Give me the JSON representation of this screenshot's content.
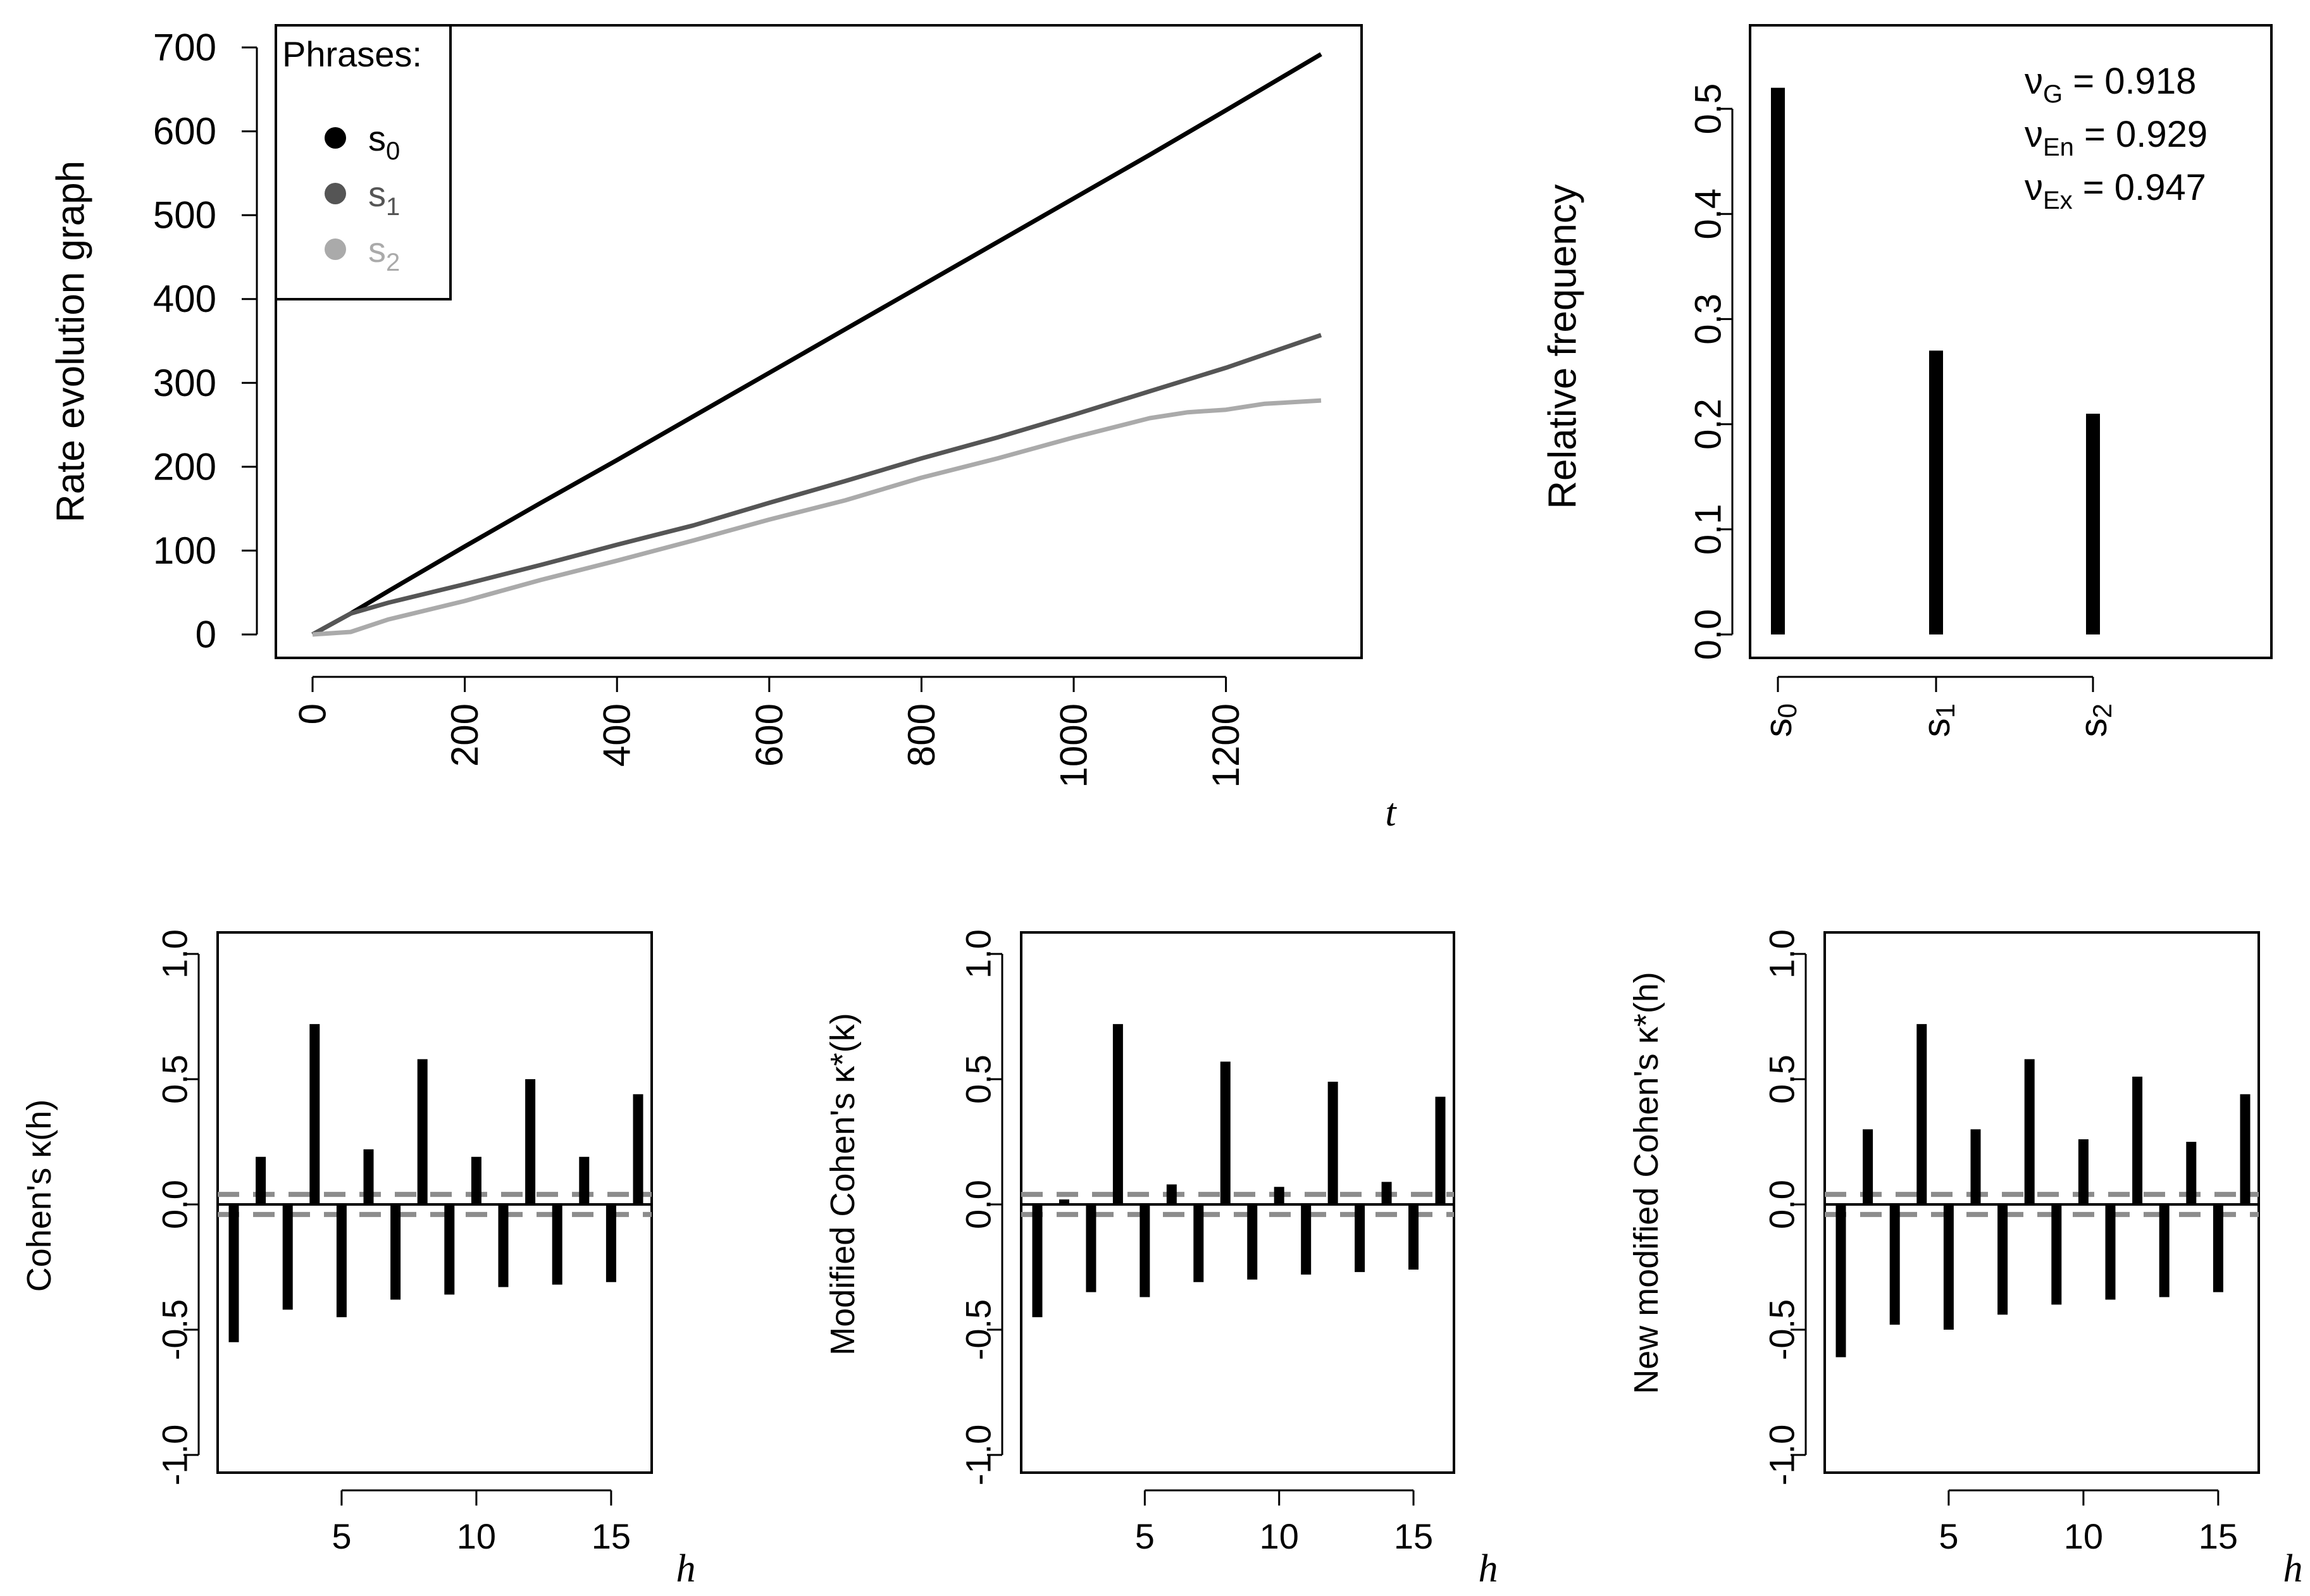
{
  "chart_data": [
    {
      "type": "line",
      "ylabel": "Rate evolution graph",
      "xlabel": "t",
      "xlim": [
        0,
        1325
      ],
      "ylim": [
        0,
        700
      ],
      "xticks": [
        "0",
        "200",
        "400",
        "600",
        "800",
        "1000",
        "1200"
      ],
      "xtick_values": [
        0,
        200,
        400,
        600,
        800,
        1000,
        1200
      ],
      "yticks": [
        "0",
        "100",
        "200",
        "300",
        "400",
        "500",
        "600",
        "700"
      ],
      "ytick_values": [
        0,
        100,
        200,
        300,
        400,
        500,
        600,
        700
      ],
      "legend": {
        "title": "Phrases:",
        "entries": [
          {
            "base": "s",
            "sub": "0",
            "color": "#000000"
          },
          {
            "base": "s",
            "sub": "1",
            "color": "#555555"
          },
          {
            "base": "s",
            "sub": "2",
            "color": "#aaaaaa"
          }
        ],
        "placement": "top-left"
      },
      "series": [
        {
          "name": "s0",
          "color": "#000000",
          "x": [
            0,
            50,
            100,
            200,
            300,
            400,
            500,
            600,
            700,
            800,
            900,
            1000,
            1100,
            1200,
            1325
          ],
          "y": [
            0,
            25,
            52,
            105,
            157,
            208,
            260,
            312,
            364,
            416,
            468,
            520,
            572,
            625,
            692
          ]
        },
        {
          "name": "s1",
          "color": "#555555",
          "x": [
            0,
            50,
            100,
            200,
            300,
            400,
            500,
            600,
            700,
            800,
            900,
            1000,
            1100,
            1200,
            1325
          ],
          "y": [
            0,
            25,
            38,
            60,
            83,
            107,
            130,
            157,
            183,
            210,
            235,
            262,
            290,
            318,
            357
          ]
        },
        {
          "name": "s2",
          "color": "#aaaaaa",
          "x": [
            0,
            50,
            100,
            200,
            300,
            400,
            500,
            600,
            700,
            800,
            900,
            1000,
            1100,
            1150,
            1200,
            1250,
            1325
          ],
          "y": [
            0,
            3,
            18,
            40,
            65,
            88,
            112,
            137,
            160,
            187,
            210,
            235,
            258,
            265,
            268,
            275,
            279
          ]
        }
      ]
    },
    {
      "type": "bar",
      "ylabel": "Relative frequency",
      "categories": [
        {
          "base": "s",
          "sub": "0"
        },
        {
          "base": "s",
          "sub": "1"
        },
        {
          "base": "s",
          "sub": "2"
        }
      ],
      "values": [
        0.52,
        0.27,
        0.21
      ],
      "ylim": [
        0,
        0.55
      ],
      "yticks": [
        "0.0",
        "0.1",
        "0.2",
        "0.3",
        "0.4",
        "0.5"
      ],
      "ytick_values": [
        0,
        0.1,
        0.2,
        0.3,
        0.4,
        0.5
      ],
      "annotations": [
        {
          "symbol": "ν",
          "sub": "G",
          "text": " = 0.918"
        },
        {
          "symbol": "ν",
          "sub": "En",
          "text": " = 0.929"
        },
        {
          "symbol": "ν",
          "sub": "Ex",
          "text": " = 0.947"
        }
      ]
    },
    {
      "type": "bar",
      "ylabel": "Cohen's   κ(h)",
      "xlabel": "h",
      "x": [
        1,
        2,
        3,
        4,
        5,
        6,
        7,
        8,
        9,
        10,
        11,
        12,
        13,
        14,
        15,
        16
      ],
      "values": [
        -0.55,
        0.19,
        -0.42,
        0.72,
        -0.45,
        0.22,
        -0.38,
        0.58,
        -0.36,
        0.19,
        -0.33,
        0.5,
        -0.32,
        0.19,
        -0.31,
        0.44
      ],
      "ylim": [
        -1.0,
        1.0
      ],
      "xlim": [
        0.5,
        16.5
      ],
      "xticks": [
        "5",
        "10",
        "15"
      ],
      "xtick_values": [
        5,
        10,
        15
      ],
      "yticks": [
        "-1.0",
        "-0.5",
        "0.0",
        "0.5",
        "1.0"
      ],
      "ytick_values": [
        -1.0,
        -0.5,
        0.0,
        0.5,
        1.0
      ],
      "threshold": 0.04
    },
    {
      "type": "bar",
      "ylabel": "Modified Cohen's   κ*(k)",
      "xlabel": "h",
      "x": [
        1,
        2,
        3,
        4,
        5,
        6,
        7,
        8,
        9,
        10,
        11,
        12,
        13,
        14,
        15,
        16
      ],
      "values": [
        -0.45,
        0.02,
        -0.35,
        0.72,
        -0.37,
        0.08,
        -0.31,
        0.57,
        -0.3,
        0.07,
        -0.28,
        0.49,
        -0.27,
        0.09,
        -0.26,
        0.43
      ],
      "ylim": [
        -1.0,
        1.0
      ],
      "xlim": [
        0.5,
        16.5
      ],
      "xticks": [
        "5",
        "10",
        "15"
      ],
      "xtick_values": [
        5,
        10,
        15
      ],
      "yticks": [
        "-1.0",
        "-0.5",
        "0.0",
        "0.5",
        "1.0"
      ],
      "ytick_values": [
        -1.0,
        -0.5,
        0.0,
        0.5,
        1.0
      ],
      "threshold": 0.04
    },
    {
      "type": "bar",
      "ylabel": "New modified Cohen's   κ*(h)",
      "xlabel": "h",
      "x": [
        1,
        2,
        3,
        4,
        5,
        6,
        7,
        8,
        9,
        10,
        11,
        12,
        13,
        14,
        15,
        16
      ],
      "values": [
        -0.61,
        0.3,
        -0.48,
        0.72,
        -0.5,
        0.3,
        -0.44,
        0.58,
        -0.4,
        0.26,
        -0.38,
        0.51,
        -0.37,
        0.25,
        -0.35,
        0.44
      ],
      "ylim": [
        -1.0,
        1.0
      ],
      "xlim": [
        0.5,
        16.5
      ],
      "xticks": [
        "5",
        "10",
        "15"
      ],
      "xtick_values": [
        5,
        10,
        15
      ],
      "yticks": [
        "-1.0",
        "-0.5",
        "0.0",
        "0.5",
        "1.0"
      ],
      "ytick_values": [
        -1.0,
        -0.5,
        0.0,
        0.5,
        1.0
      ],
      "threshold": 0.04
    }
  ]
}
